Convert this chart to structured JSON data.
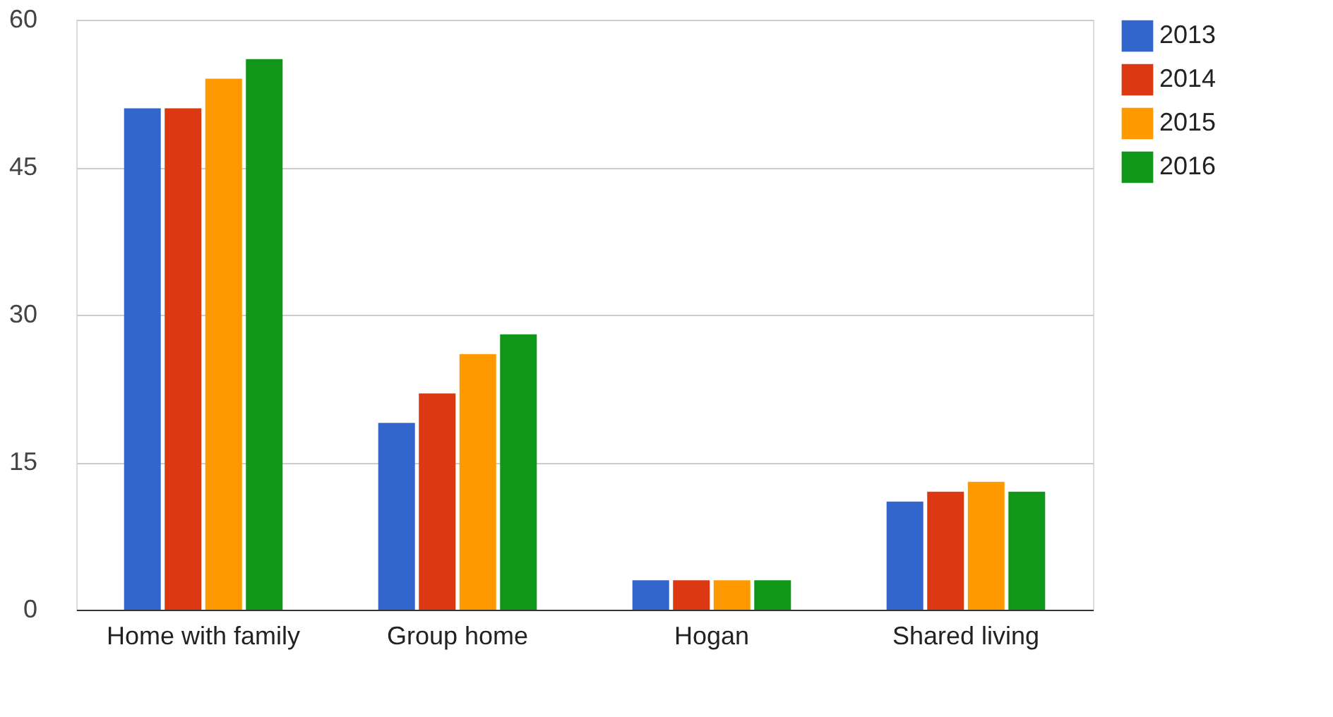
{
  "chart_data": {
    "type": "bar",
    "categories": [
      "Home with family",
      "Group home",
      "Hogan",
      "Shared living"
    ],
    "series": [
      {
        "name": "2013",
        "color": "#3366cc",
        "values": [
          51,
          19,
          3,
          11
        ]
      },
      {
        "name": "2014",
        "color": "#dc3912",
        "values": [
          51,
          22,
          3,
          12
        ]
      },
      {
        "name": "2015",
        "color": "#ff9900",
        "values": [
          54,
          26,
          3,
          13
        ]
      },
      {
        "name": "2016",
        "color": "#109618",
        "values": [
          56,
          28,
          3,
          12
        ]
      }
    ],
    "ylim": [
      0,
      60
    ],
    "yticks": [
      0,
      15,
      30,
      45,
      60
    ],
    "grid": "y",
    "legend": "top right"
  }
}
